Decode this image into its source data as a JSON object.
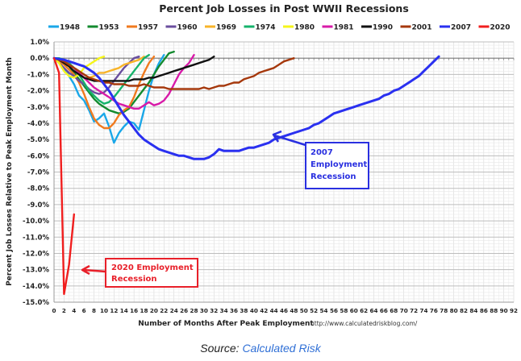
{
  "chart_data": {
    "type": "line",
    "title": "Percent Job Losses in Post WWII Recessions",
    "xlabel": "Number of Months After Peak Employment",
    "ylabel": "Percent Job Losses Relative to Peak Employment Month",
    "url_note": "http://www.calculatedriskblog.com/",
    "xlim": [
      0,
      92
    ],
    "ylim": [
      -15,
      1
    ],
    "x_ticks": [
      0,
      2,
      4,
      6,
      8,
      10,
      12,
      14,
      16,
      18,
      20,
      22,
      24,
      26,
      28,
      30,
      32,
      34,
      36,
      38,
      40,
      42,
      44,
      46,
      48,
      50,
      52,
      54,
      56,
      58,
      60,
      62,
      64,
      66,
      68,
      70,
      72,
      74,
      76,
      78,
      80,
      82,
      84,
      86,
      88,
      90,
      92
    ],
    "y_ticks": [
      "1.0%",
      "0.0%",
      "-1.0%",
      "-2.0%",
      "-3.0%",
      "-4.0%",
      "-5.0%",
      "-6.0%",
      "-7.0%",
      "-8.0%",
      "-9.0%",
      "-10.0%",
      "-11.0%",
      "-12.0%",
      "-13.0%",
      "-14.0%",
      "-15.0%"
    ],
    "y_tick_values": [
      1,
      0,
      -1,
      -2,
      -3,
      -4,
      -5,
      -6,
      -7,
      -8,
      -9,
      -10,
      -11,
      -12,
      -13,
      -14,
      -15
    ],
    "grid": true,
    "legend_position": "top",
    "series": [
      {
        "name": "1948",
        "color": "#1aa7e8",
        "values": [
          0,
          -0.3,
          -0.6,
          -1.1,
          -1.6,
          -2.3,
          -2.6,
          -3.2,
          -3.9,
          -3.7,
          -3.4,
          -4.2,
          -5.2,
          -4.6,
          -4.2,
          -3.9,
          -4.0,
          -4.4,
          -3.2,
          -2.0,
          -1.0,
          -0.3,
          0.2
        ]
      },
      {
        "name": "1953",
        "color": "#138a2e",
        "values": [
          0,
          -0.1,
          -0.3,
          -0.5,
          -0.9,
          -1.3,
          -1.7,
          -2.1,
          -2.5,
          -2.8,
          -3.0,
          -3.2,
          -3.3,
          -3.4,
          -3.3,
          -3.1,
          -2.7,
          -2.3,
          -1.9,
          -1.5,
          -1.0,
          -0.5,
          -0.1,
          0.3,
          0.4
        ]
      },
      {
        "name": "1957",
        "color": "#f07a1e",
        "values": [
          0,
          -0.2,
          -0.4,
          -0.7,
          -1.0,
          -1.5,
          -2.2,
          -3.0,
          -3.7,
          -4.1,
          -4.3,
          -4.3,
          -4.0,
          -3.5,
          -3.2,
          -3.0,
          -2.4,
          -1.6,
          -0.9,
          -0.3,
          0.1
        ]
      },
      {
        "name": "1960",
        "color": "#6a4e9e",
        "values": [
          0,
          -0.3,
          -0.6,
          -0.9,
          -1.1,
          -1.4,
          -1.6,
          -1.9,
          -2.1,
          -2.2,
          -2.1,
          -1.8,
          -1.4,
          -1.0,
          -0.6,
          -0.3,
          0.0,
          0.1
        ]
      },
      {
        "name": "1969",
        "color": "#f8b42a",
        "values": [
          0,
          -0.1,
          -0.3,
          -0.4,
          -0.6,
          -0.8,
          -1.0,
          -1.2,
          -1.1,
          -0.9,
          -0.9,
          -0.8,
          -0.7,
          -0.6,
          -0.4,
          -0.3,
          -0.2,
          -0.1,
          0.1
        ]
      },
      {
        "name": "1974",
        "color": "#16b36b",
        "values": [
          0,
          0,
          -0.1,
          -0.3,
          -0.6,
          -1.0,
          -1.5,
          -2.0,
          -2.3,
          -2.6,
          -2.8,
          -2.7,
          -2.4,
          -2.0,
          -1.6,
          -1.2,
          -0.8,
          -0.4,
          0.0,
          0.2
        ]
      },
      {
        "name": "1980",
        "color": "#f5f51a",
        "values": [
          0,
          -0.3,
          -0.8,
          -1.1,
          -1.2,
          -1.0,
          -0.6,
          -0.4,
          -0.2,
          0,
          0.1
        ]
      },
      {
        "name": "1981",
        "color": "#d81aa8",
        "values": [
          0,
          -0.1,
          -0.2,
          -0.4,
          -0.6,
          -0.9,
          -1.2,
          -1.5,
          -1.8,
          -2.0,
          -2.2,
          -2.4,
          -2.6,
          -2.8,
          -2.9,
          -3.0,
          -3.1,
          -3.1,
          -2.9,
          -2.7,
          -2.9,
          -2.8,
          -2.6,
          -2.2,
          -1.6,
          -1.0,
          -0.6,
          -0.3,
          0.2
        ]
      },
      {
        "name": "1990",
        "color": "#111111",
        "values": [
          0,
          -0.1,
          -0.3,
          -0.5,
          -0.8,
          -1.0,
          -1.2,
          -1.3,
          -1.4,
          -1.4,
          -1.4,
          -1.4,
          -1.4,
          -1.4,
          -1.4,
          -1.4,
          -1.3,
          -1.3,
          -1.3,
          -1.2,
          -1.2,
          -1.1,
          -1.0,
          -0.9,
          -0.8,
          -0.7,
          -0.6,
          -0.5,
          -0.4,
          -0.3,
          -0.2,
          -0.1,
          0.1
        ]
      },
      {
        "name": "2001",
        "color": "#a5380c",
        "values": [
          0,
          -0.1,
          -0.2,
          -0.4,
          -0.6,
          -0.8,
          -1.0,
          -1.2,
          -1.3,
          -1.4,
          -1.5,
          -1.5,
          -1.6,
          -1.6,
          -1.6,
          -1.7,
          -1.7,
          -1.7,
          -1.6,
          -1.7,
          -1.8,
          -1.8,
          -1.8,
          -1.9,
          -1.9,
          -1.9,
          -1.9,
          -1.9,
          -1.9,
          -1.9,
          -1.8,
          -1.9,
          -1.8,
          -1.7,
          -1.7,
          -1.6,
          -1.5,
          -1.5,
          -1.3,
          -1.2,
          -1.1,
          -0.9,
          -0.8,
          -0.7,
          -0.6,
          -0.4,
          -0.2,
          -0.1,
          0.0
        ]
      },
      {
        "name": "2007",
        "color": "#2a30f0",
        "values": [
          0,
          -0.05,
          -0.1,
          -0.2,
          -0.3,
          -0.4,
          -0.5,
          -0.7,
          -0.9,
          -1.2,
          -1.6,
          -2.0,
          -2.5,
          -3.0,
          -3.5,
          -3.9,
          -4.3,
          -4.7,
          -5.0,
          -5.2,
          -5.4,
          -5.6,
          -5.7,
          -5.8,
          -5.9,
          -6.0,
          -6.0,
          -6.1,
          -6.2,
          -6.2,
          -6.2,
          -6.1,
          -5.9,
          -5.6,
          -5.7,
          -5.7,
          -5.7,
          -5.7,
          -5.6,
          -5.5,
          -5.5,
          -5.4,
          -5.3,
          -5.2,
          -5.0,
          -4.9,
          -4.8,
          -4.7,
          -4.6,
          -4.5,
          -4.4,
          -4.3,
          -4.1,
          -4.0,
          -3.8,
          -3.6,
          -3.4,
          -3.3,
          -3.2,
          -3.1,
          -3.0,
          -2.9,
          -2.8,
          -2.7,
          -2.6,
          -2.5,
          -2.3,
          -2.2,
          -2.0,
          -1.9,
          -1.7,
          -1.5,
          -1.3,
          -1.1,
          -0.8,
          -0.5,
          -0.2,
          0.1
        ]
      },
      {
        "name": "2020",
        "color": "#f01e1e",
        "values": [
          0,
          -0.9,
          -14.5,
          -12.7,
          -9.6
        ]
      }
    ],
    "annotations": [
      {
        "text_lines": [
          "2020 Employment",
          "Recession"
        ],
        "color": "#e8202a",
        "points_to_series": "2020"
      },
      {
        "text_lines": [
          "2007",
          "Employment",
          "Recession"
        ],
        "color": "#2a30e0",
        "points_to_series": "2007"
      }
    ]
  },
  "source": {
    "prefix": "Source: ",
    "link_text": "Calculated Risk"
  }
}
